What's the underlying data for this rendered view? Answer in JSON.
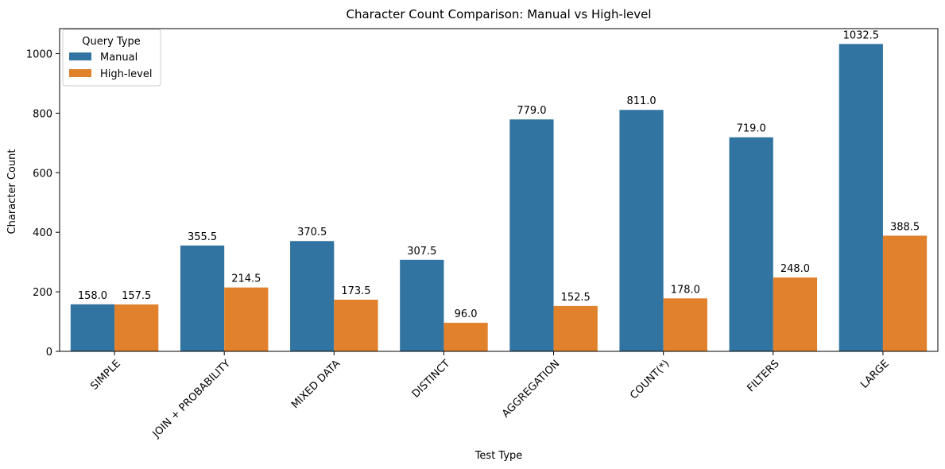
{
  "chart_data": {
    "type": "bar",
    "title": "Character Count Comparison: Manual vs High-level",
    "xlabel": "Test Type",
    "ylabel": "Character Count",
    "categories": [
      "SIMPLE",
      "JOIN + PROBABILITY",
      "MIXED DATA",
      "DISTINCT",
      "AGGREGATION",
      "COUNT(*)",
      "FILTERS",
      "LARGE"
    ],
    "series": [
      {
        "name": "Manual",
        "color": "#3274a1",
        "values": [
          158.0,
          355.5,
          370.5,
          307.5,
          779.0,
          811.0,
          719.0,
          1032.5
        ]
      },
      {
        "name": "High-level",
        "color": "#e1812c",
        "values": [
          157.5,
          214.5,
          173.5,
          96.0,
          152.5,
          178.0,
          248.0,
          388.5
        ]
      }
    ],
    "data_labels": [
      [
        "158.0",
        "355.5",
        "370.5",
        "307.5",
        "779.0",
        "811.0",
        "719.0",
        "1032.5"
      ],
      [
        "157.5",
        "214.5",
        "173.5",
        "96.0",
        "152.5",
        "178.0",
        "248.0",
        "388.5"
      ]
    ],
    "ylim": [
      0,
      1084
    ],
    "yticks": [
      0,
      200,
      400,
      600,
      800,
      1000
    ],
    "legend": {
      "title": "Query Type",
      "placement": "top-left"
    },
    "grid": false,
    "x_tick_rotation_deg": 45
  }
}
